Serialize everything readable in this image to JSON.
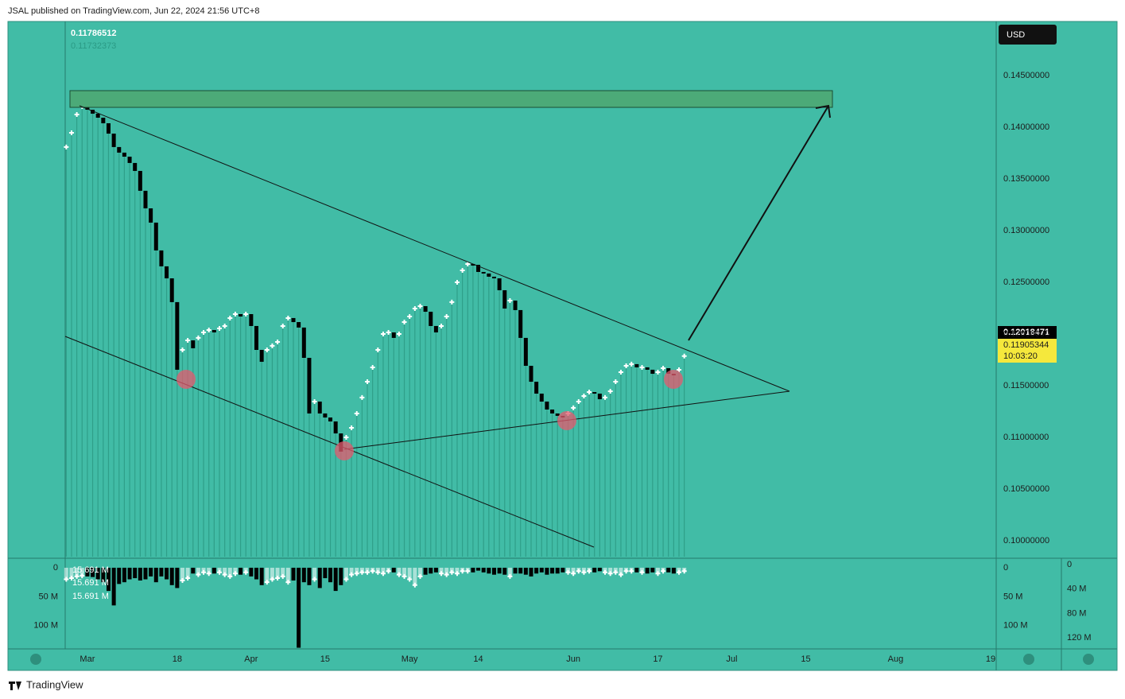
{
  "header": {
    "text": "JSAL published on TradingView.com, Jun 22, 2024 21:56 UTC+8"
  },
  "footer": {
    "brand": "TradingView"
  },
  "chart_data": {
    "type": "bar",
    "currency": "USD",
    "legend_values": [
      "0.11786512",
      "0.11732373"
    ],
    "price_labels": {
      "high": "0.12018471",
      "last": "0.11905344",
      "countdown": "10:03:20"
    },
    "color_up": "#ffffff",
    "color_down": "#000000",
    "stem_color": "#2f9f89",
    "values": [
      0.13808,
      0.13946,
      0.14123,
      0.142,
      0.14169,
      0.14131,
      0.14092,
      0.14038,
      0.13938,
      0.13808,
      0.13754,
      0.13715,
      0.13654,
      0.13577,
      0.13385,
      0.13215,
      0.13077,
      0.12808,
      0.12654,
      0.12538,
      0.12308,
      0.11654,
      0.11846,
      0.11938,
      0.11862,
      0.11962,
      0.12015,
      0.12038,
      0.12015,
      0.12054,
      0.12077,
      0.12154,
      0.12192,
      0.12169,
      0.12192,
      0.12077,
      0.11846,
      0.11731,
      0.11846,
      0.11885,
      0.11923,
      0.12077,
      0.12154,
      0.12115,
      0.12062,
      0.11769,
      0.11231,
      0.11346,
      0.11231,
      0.11192,
      0.11154,
      0.11038,
      0.10862,
      0.11,
      0.11092,
      0.11231,
      0.11385,
      0.11538,
      0.11677,
      0.11846,
      0.12,
      0.12015,
      0.11962,
      0.12,
      0.12115,
      0.12169,
      0.12246,
      0.12269,
      0.12215,
      0.12077,
      0.12015,
      0.12077,
      0.12169,
      0.12308,
      0.125,
      0.12615,
      0.12677,
      0.12669,
      0.126,
      0.12585,
      0.12554,
      0.12538,
      0.12423,
      0.12246,
      0.12323,
      0.12231,
      0.11962,
      0.11692,
      0.11538,
      0.11423,
      0.11346,
      0.11269,
      0.11231,
      0.11208,
      0.11192,
      0.11231,
      0.11285,
      0.11346,
      0.114,
      0.11438,
      0.11423,
      0.11369,
      0.11385,
      0.11446,
      0.11538,
      0.11631,
      0.11692,
      0.11708,
      0.11677,
      0.11677,
      0.11654,
      0.11615,
      0.11631,
      0.11669,
      0.11615,
      0.116,
      0.11654,
      0.11786512
    ],
    "xlim": [
      -0.2,
      175.9
    ],
    "xticks": [
      {
        "value": 4,
        "label": "Mar"
      },
      {
        "value": 21,
        "label": "18"
      },
      {
        "value": 35,
        "label": "Apr"
      },
      {
        "value": 49,
        "label": "15"
      },
      {
        "value": 65,
        "label": "May"
      },
      {
        "value": 78,
        "label": "14"
      },
      {
        "value": 96,
        "label": "Jun"
      },
      {
        "value": 112,
        "label": "17"
      },
      {
        "value": 126,
        "label": "Jul"
      },
      {
        "value": 140,
        "label": "15"
      },
      {
        "value": 157,
        "label": "Aug"
      },
      {
        "value": 175,
        "label": "19"
      }
    ],
    "ylim": [
      0.09846,
      0.15015
    ],
    "yticks": [
      {
        "value": 0.145,
        "label": "0.14500000"
      },
      {
        "value": 0.14,
        "label": "0.14000000"
      },
      {
        "value": 0.135,
        "label": "0.13500000"
      },
      {
        "value": 0.13,
        "label": "0.13000000"
      },
      {
        "value": 0.125,
        "label": "0.12500000"
      },
      {
        "value": 0.12,
        "label": "0.12000000"
      },
      {
        "value": 0.115,
        "label": "0.11500000"
      },
      {
        "value": 0.11,
        "label": "0.11000000"
      },
      {
        "value": 0.105,
        "label": "0.10500000"
      },
      {
        "value": 0.1,
        "label": "0.10000000"
      }
    ],
    "volume": {
      "legend_values": [
        "15.691 M",
        "15.691 M",
        "15.691 M"
      ],
      "values": [
        20,
        18,
        15,
        14,
        15,
        16,
        20,
        25,
        40,
        65,
        28,
        25,
        20,
        18,
        22,
        20,
        15,
        25,
        15,
        20,
        30,
        35,
        22,
        18,
        10,
        12,
        8,
        10,
        10,
        8,
        12,
        15,
        10,
        12,
        8,
        15,
        20,
        30,
        25,
        20,
        18,
        15,
        25,
        22,
        138,
        25,
        30,
        20,
        35,
        18,
        25,
        40,
        30,
        20,
        12,
        10,
        8,
        8,
        6,
        8,
        10,
        6,
        8,
        12,
        15,
        20,
        30,
        15,
        12,
        10,
        8,
        10,
        12,
        8,
        10,
        6,
        6,
        8,
        5,
        8,
        10,
        12,
        10,
        12,
        15,
        10,
        10,
        12,
        15,
        10,
        8,
        12,
        10,
        10,
        8,
        8,
        10,
        6,
        8,
        6,
        8,
        6,
        8,
        10,
        8,
        12,
        6,
        6,
        8,
        8,
        10,
        8,
        10,
        6,
        8,
        10,
        8,
        6
      ],
      "ylim": [
        -15,
        140
      ],
      "yticks": [
        0,
        {
          "value": 50,
          "label": "50 M"
        },
        {
          "value": 100,
          "label": "100 M"
        }
      ],
      "y2lim": [
        -9,
        138
      ],
      "y2ticks": [
        0,
        {
          "value": 40,
          "label": "40 M"
        },
        {
          "value": 80,
          "label": "80 M"
        },
        {
          "value": 120,
          "label": "120 M"
        }
      ]
    }
  }
}
